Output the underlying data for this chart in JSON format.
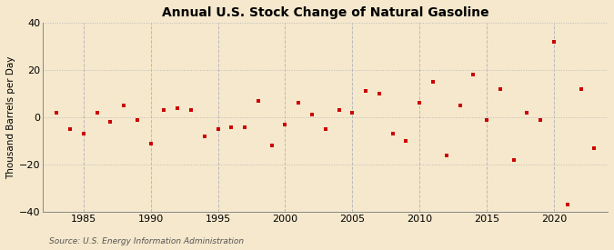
{
  "title": "Annual U.S. Stock Change of Natural Gasoline",
  "ylabel": "Thousand Barrels per Day",
  "source": "Source: U.S. Energy Information Administration",
  "background_color": "#f5e8cc",
  "plot_background_color": "#f5e8cc",
  "marker_color": "#cc0000",
  "years": [
    1983,
    1984,
    1985,
    1986,
    1987,
    1988,
    1989,
    1990,
    1991,
    1992,
    1993,
    1994,
    1995,
    1996,
    1997,
    1998,
    1999,
    2000,
    2001,
    2002,
    2003,
    2004,
    2005,
    2006,
    2007,
    2008,
    2009,
    2010,
    2011,
    2012,
    2013,
    2014,
    2015,
    2016,
    2017,
    2018,
    2019,
    2020,
    2021,
    2022,
    2023
  ],
  "values": [
    2,
    -5,
    -7,
    2,
    -2,
    5,
    -1,
    -11,
    3,
    4,
    3,
    -8,
    -5,
    -4,
    -4,
    7,
    -12,
    -3,
    6,
    1,
    -5,
    3,
    2,
    11,
    10,
    -7,
    -10,
    6,
    15,
    -16,
    5,
    18,
    -1,
    12,
    -18,
    2,
    -1,
    32,
    -37,
    12,
    -13
  ],
  "xlim": [
    1982,
    2024
  ],
  "ylim": [
    -40,
    40
  ],
  "yticks": [
    -40,
    -20,
    0,
    20,
    40
  ],
  "xticks": [
    1985,
    1990,
    1995,
    2000,
    2005,
    2010,
    2015,
    2020
  ],
  "grid_color": "#bbbbbb",
  "spine_color": "#888888",
  "title_fontsize": 10,
  "tick_fontsize": 8,
  "ylabel_fontsize": 7.5,
  "source_fontsize": 6.5,
  "marker_size": 12
}
